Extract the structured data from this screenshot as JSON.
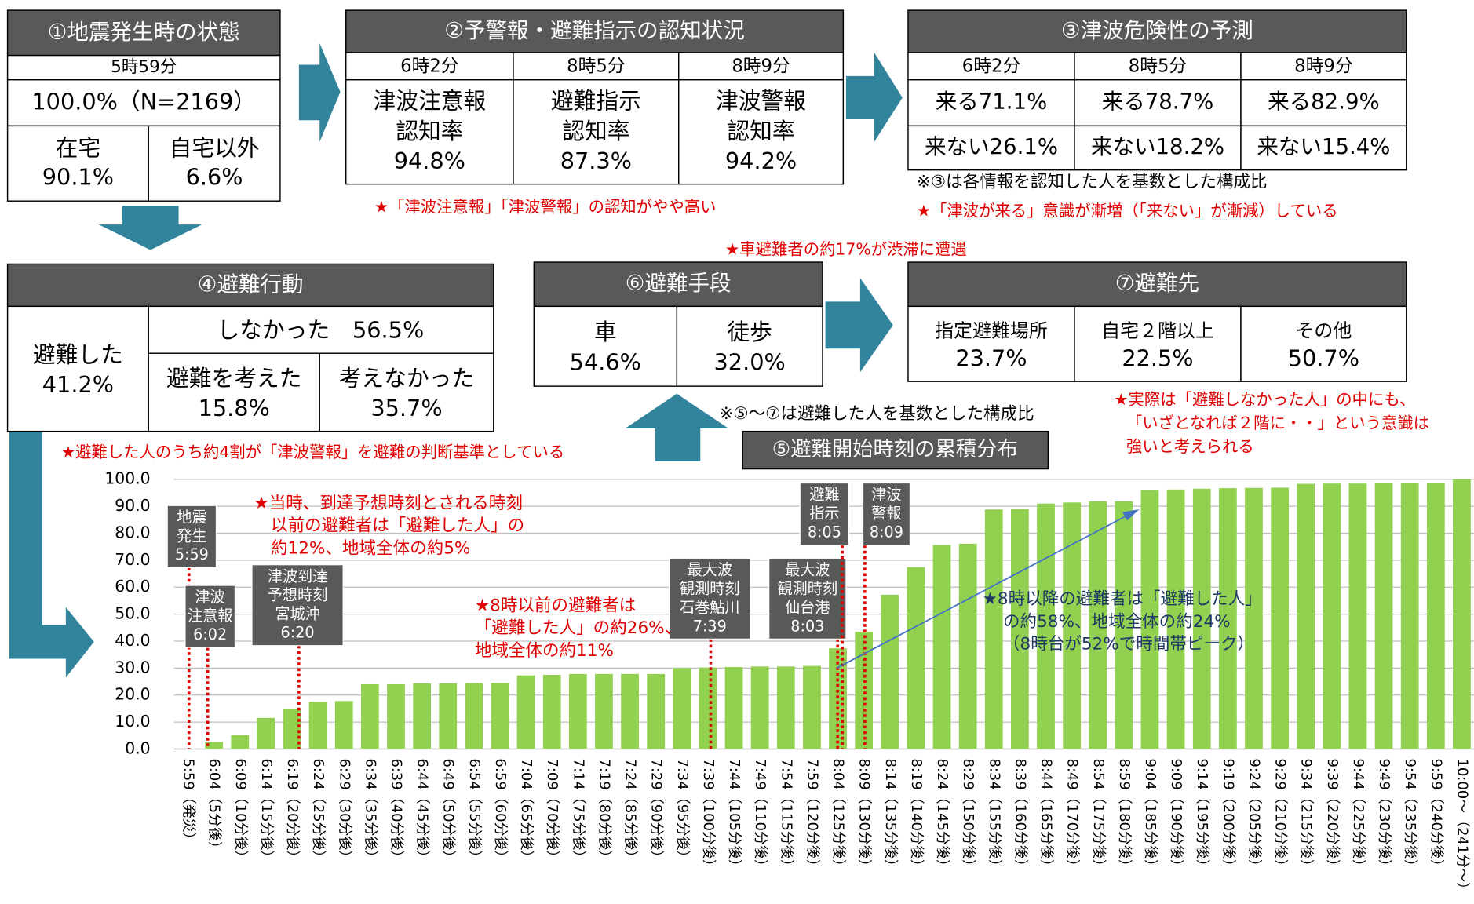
{
  "box1": {
    "title": "①地震発生時の状態",
    "time": "5時59分",
    "total": "100.0%（N=2169）",
    "cells": [
      [
        "在宅",
        "90.1%"
      ],
      [
        "自宅以外",
        "6.6%"
      ]
    ]
  },
  "box2": {
    "title": "②予警報・避難指示の認知状況",
    "cols": [
      {
        "time": "6時2分",
        "lines": [
          "津波注意報",
          "認知率",
          "94.8%"
        ]
      },
      {
        "time": "8時5分",
        "lines": [
          "避難指示",
          "認知率",
          "87.3%"
        ]
      },
      {
        "time": "8時9分",
        "lines": [
          "津波警報",
          "認知率",
          "94.2%"
        ]
      }
    ],
    "note": "★「津波注意報」「津波警報」の認知がやや高い"
  },
  "box3": {
    "title": "③津波危険性の予測",
    "times": [
      "6時2分",
      "8時5分",
      "8時9分"
    ],
    "come": [
      "来る71.1%",
      "来る78.7%",
      "来る82.9%"
    ],
    "notcome": [
      "来ない26.1%",
      "来ない18.2%",
      "来ない15.4%"
    ],
    "notes": [
      "※③は各情報を認知した人を基数とした構成比",
      "★「津波が来る」意識が漸増（「来ない」が漸減）している"
    ]
  },
  "box4": {
    "title": "④避難行動",
    "evac": [
      "避難した",
      "41.2%"
    ],
    "not": "しなかった　56.5%",
    "sub": [
      [
        "避難を考えた",
        "15.8%"
      ],
      [
        "考えなかった",
        "35.7%"
      ]
    ],
    "note": "★避難した人のうち約4割が「津波警報」を避難の判断基準としている"
  },
  "box6": {
    "title": "⑥避難手段",
    "cells": [
      [
        "車",
        "54.6%"
      ],
      [
        "徒歩",
        "32.0%"
      ]
    ],
    "note": "★車避難者の約17%が渋滞に遭遇"
  },
  "box7": {
    "title": "⑦避難先",
    "cells": [
      [
        "指定避難場所",
        "23.7%"
      ],
      [
        "自宅２階以上",
        "22.5%"
      ],
      [
        "その他",
        "50.7%"
      ]
    ],
    "notes": [
      "★実際は「避難しなかった人」の中にも、",
      "「いざとなれば２階に・・」という意識は",
      "強いと考えられる"
    ]
  },
  "note57": "※⑤～⑦は避難した人を基数とした構成比",
  "chart_data": {
    "type": "bar",
    "title": "⑤避難開始時刻の累積分布",
    "color": "#92d050",
    "grid": true,
    "categories": [
      "5:59（発災）",
      "6:04（5分後）",
      "6:09（10分後）",
      "6:14（15分後）",
      "6:19（20分後）",
      "6:24（25分後）",
      "6:29（30分後）",
      "6:34（35分後）",
      "6:39（40分後）",
      "6:44（45分後）",
      "6:49（50分後）",
      "6:54（55分後）",
      "6:59（60分後）",
      "7:04（65分後）",
      "7:09（70分後）",
      "7:14（75分後）",
      "7:19（80分後）",
      "7:24（85分後）",
      "7:29（90分後）",
      "7:34（95分後）",
      "7:39（100分後）",
      "7:44（105分後）",
      "7:49（110分後）",
      "7:54（115分後）",
      "7:59（120分後）",
      "8:04（125分後）",
      "8:09（130分後）",
      "8:14（135分後）",
      "8:19（140分後）",
      "8:24（145分後）",
      "8:29（150分後）",
      "8:34（155分後）",
      "8:39（160分後）",
      "8:44（165分後）",
      "8:49（170分後）",
      "8:54（175分後）",
      "8:59（180分後）",
      "9:04（185分後）",
      "9:09（190分後）",
      "9:14（195分後）",
      "9:19（200分後）",
      "9:24（205分後）",
      "9:29（210分後）",
      "9:34（215分後）",
      "9:39（220分後）",
      "9:44（225分後）",
      "9:49（230分後）",
      "9:54（235分後）",
      "9:59（240分後）",
      "10:00～（241分～）"
    ],
    "values": [
      0,
      2.6,
      5.2,
      11.5,
      14.8,
      17.5,
      17.8,
      24.0,
      24.0,
      24.3,
      24.3,
      24.4,
      24.5,
      27.3,
      27.5,
      27.8,
      27.8,
      27.8,
      27.8,
      30.0,
      30.2,
      30.4,
      30.6,
      30.6,
      30.8,
      37.3,
      43.5,
      57.2,
      67.4,
      75.6,
      76.1,
      88.8,
      89.0,
      91.0,
      91.4,
      91.8,
      91.8,
      96.1,
      96.2,
      96.5,
      96.7,
      96.8,
      96.9,
      98.3,
      98.4,
      98.4,
      98.5,
      98.5,
      98.5,
      100
    ],
    "ylim": [
      0,
      100
    ],
    "yticks": [
      {
        "value": 0,
        "label": "0.0"
      },
      {
        "value": 10,
        "label": "10.0"
      },
      {
        "value": 20,
        "label": "20.0"
      },
      {
        "value": 30,
        "label": "30.0"
      },
      {
        "value": 40,
        "label": "40.0"
      },
      {
        "value": 50,
        "label": "50.0"
      },
      {
        "value": 60,
        "label": "60.0"
      },
      {
        "value": 70,
        "label": "70.0"
      },
      {
        "value": 80,
        "label": "80.0"
      },
      {
        "value": 90,
        "label": "90.0"
      },
      {
        "value": 100,
        "label": "100.0"
      }
    ],
    "events": [
      {
        "lines": [
          "地震",
          "発生",
          "5:59"
        ]
      },
      {
        "lines": [
          "津波",
          "注意報",
          "6:02"
        ]
      },
      {
        "lines": [
          "津波到達",
          "予想時刻",
          "宮城沖",
          "6:20"
        ]
      },
      {
        "lines": [
          "最大波",
          "観測時刻",
          "石巻鮎川",
          "7:39"
        ]
      },
      {
        "lines": [
          "最大波",
          "観測時刻",
          "仙台港",
          "8:03"
        ]
      },
      {
        "lines": [
          "避難",
          "指示",
          "8:05"
        ]
      },
      {
        "lines": [
          "津波",
          "警報",
          "8:09"
        ]
      }
    ],
    "annotations": [
      {
        "lines": [
          "★当時、到達予想時刻とされる時刻",
          "以前の避難者は「避難した人」の",
          "約12%、地域全体の約5%"
        ]
      },
      {
        "lines": [
          "★8時以前の避難者は",
          "「避難した人」の約26%、",
          "地域全体の約11%"
        ]
      },
      {
        "lines": [
          "★8時以降の避難者は「避難した人」",
          "の約58%、地域全体の約24%",
          "（8時台が52%で時間帯ピーク）"
        ]
      }
    ]
  }
}
